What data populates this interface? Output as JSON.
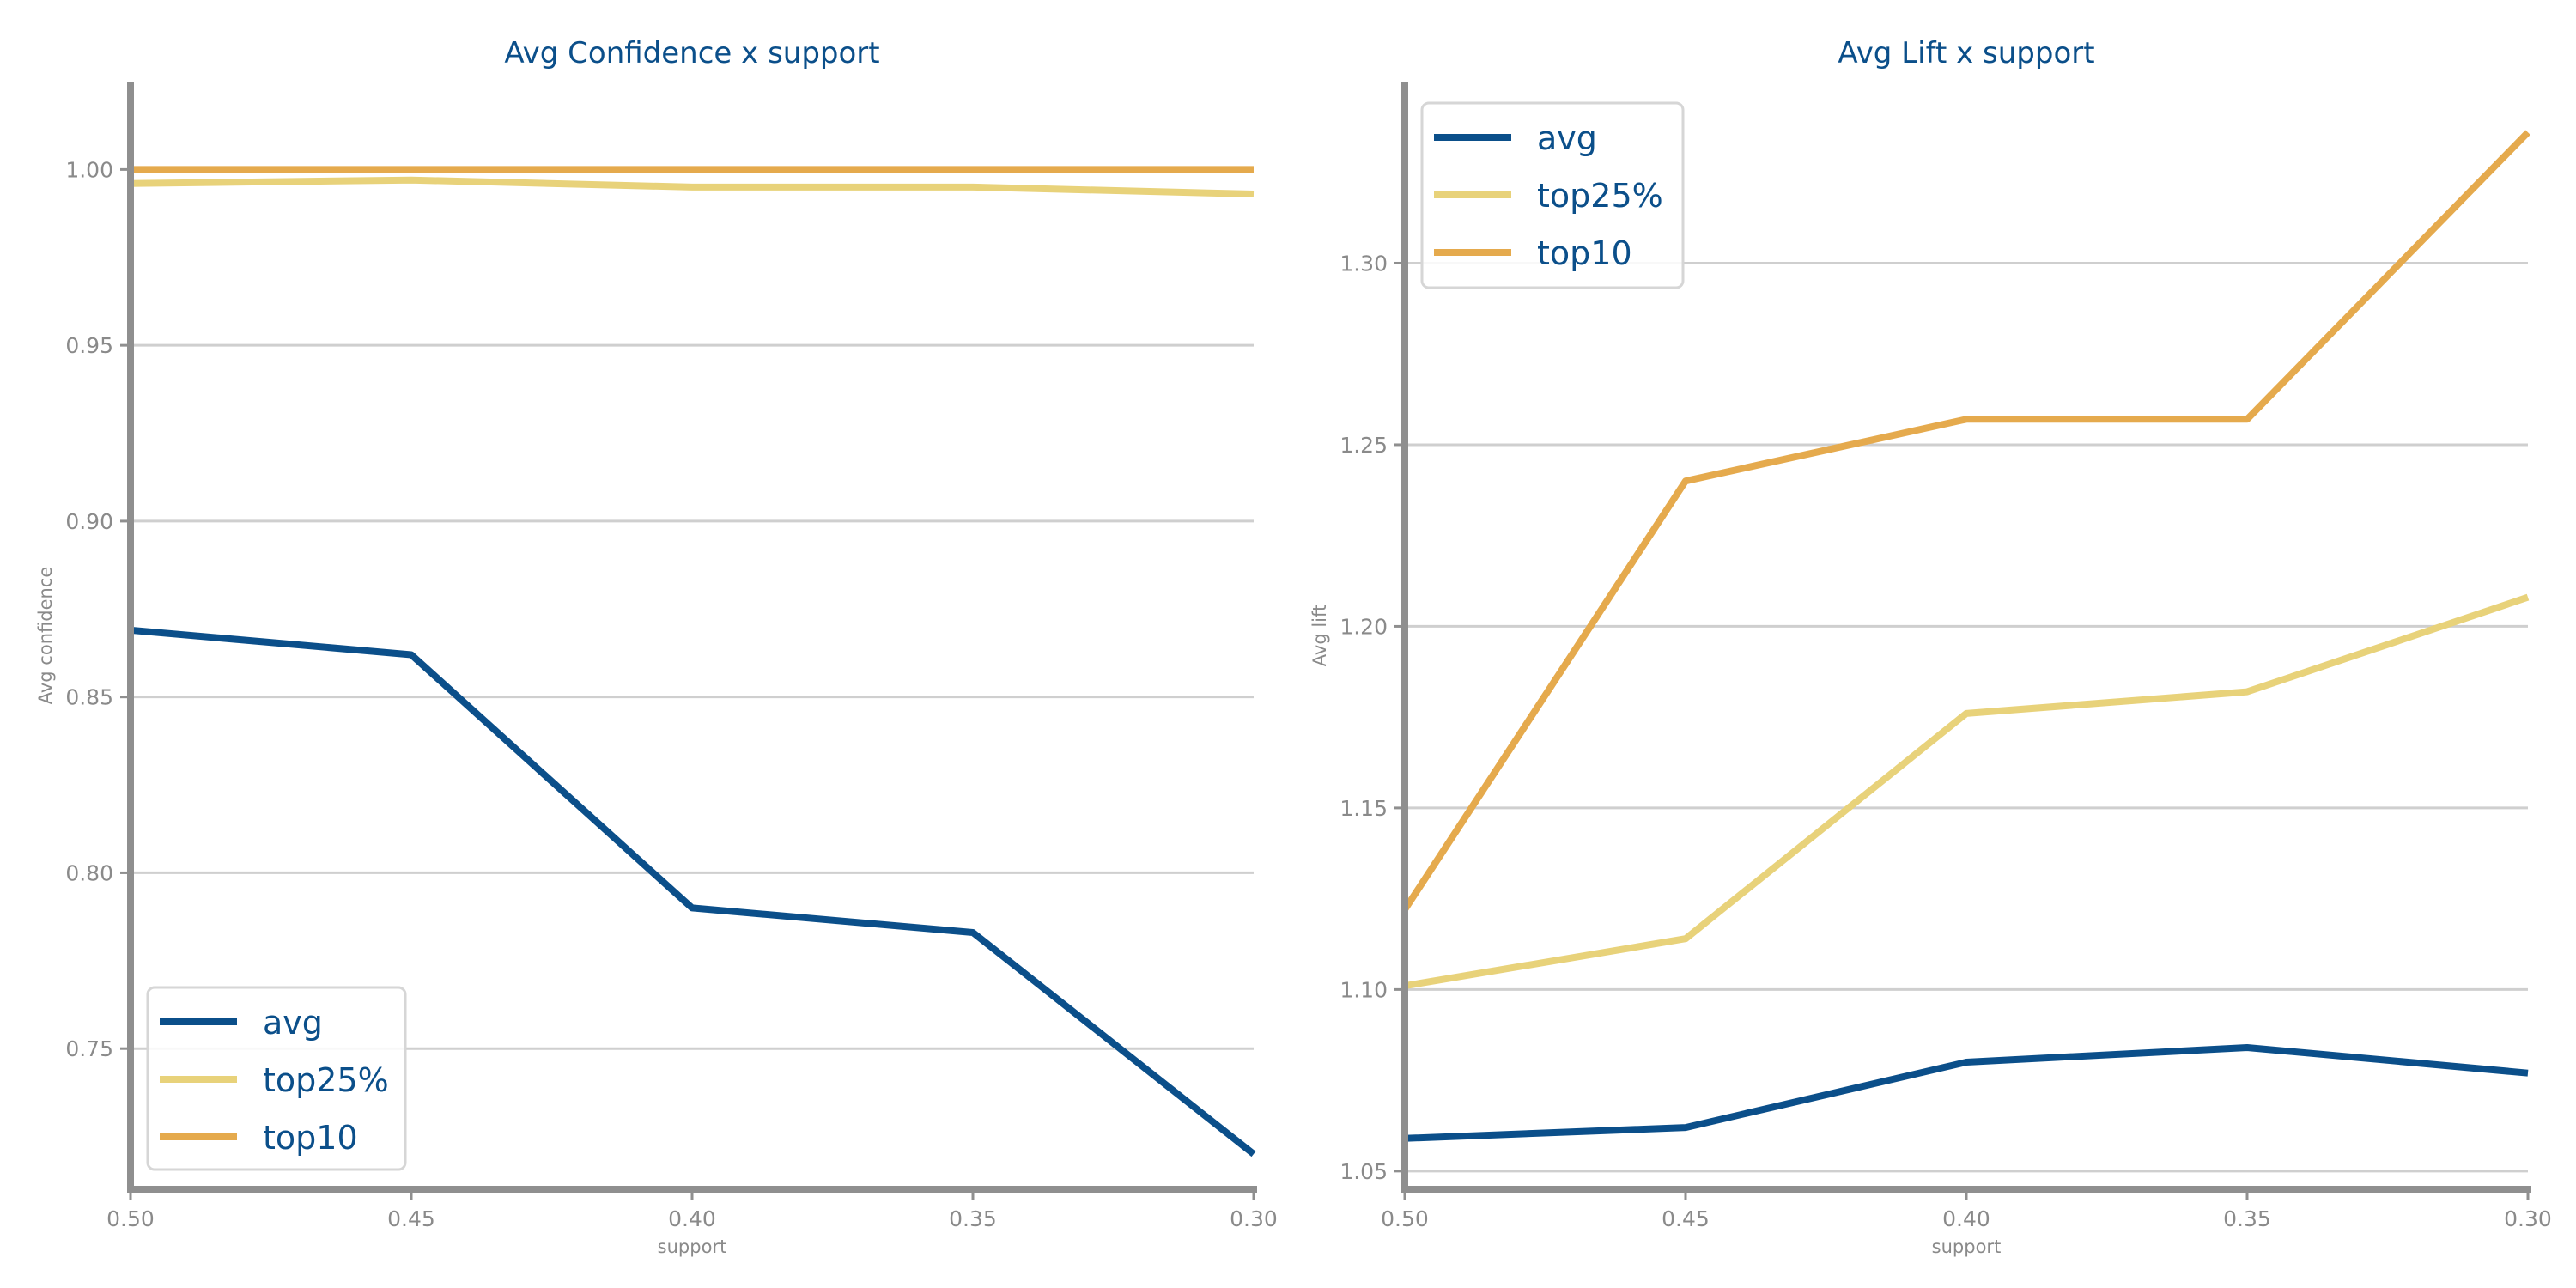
{
  "chart_data": [
    {
      "type": "line",
      "title": "Avg Confidence x support",
      "xlabel": "support",
      "ylabel": "Avg confidence",
      "x": [
        0.5,
        0.45,
        0.4,
        0.35,
        0.3
      ],
      "x_tick_labels": [
        "0.50",
        "0.45",
        "0.40",
        "0.35",
        "0.30"
      ],
      "xlim": [
        0.5,
        0.3
      ],
      "y_ticks": [
        0.75,
        0.8,
        0.85,
        0.9,
        0.95,
        1.0
      ],
      "y_tick_labels": [
        "0.75",
        "0.80",
        "0.85",
        "0.90",
        "0.95",
        "1.00"
      ],
      "ylim": [
        0.71,
        1.025
      ],
      "grid": "horizontal",
      "legend_position": "bottom-left",
      "series": [
        {
          "name": "avg",
          "color": "#0b4f8a",
          "values": [
            0.869,
            0.862,
            0.79,
            0.783,
            0.72
          ]
        },
        {
          "name": "top25%",
          "color": "#e8d27a",
          "values": [
            0.996,
            0.997,
            0.995,
            0.995,
            0.993
          ]
        },
        {
          "name": "top10",
          "color": "#e5aa4d",
          "values": [
            1.0,
            1.0,
            1.0,
            1.0,
            1.0
          ]
        }
      ]
    },
    {
      "type": "line",
      "title": "Avg Lift x support",
      "xlabel": "support",
      "ylabel": "Avg lift",
      "x": [
        0.5,
        0.45,
        0.4,
        0.35,
        0.3
      ],
      "x_tick_labels": [
        "0.50",
        "0.45",
        "0.40",
        "0.35",
        "0.30"
      ],
      "xlim": [
        0.5,
        0.3
      ],
      "y_ticks": [
        1.05,
        1.1,
        1.15,
        1.2,
        1.25,
        1.3
      ],
      "y_tick_labels": [
        "1.05",
        "1.10",
        "1.15",
        "1.20",
        "1.25",
        "1.30"
      ],
      "ylim": [
        1.045,
        1.35
      ],
      "grid": "horizontal",
      "legend_position": "top-left",
      "series": [
        {
          "name": "avg",
          "color": "#0b4f8a",
          "values": [
            1.059,
            1.062,
            1.08,
            1.084,
            1.077
          ]
        },
        {
          "name": "top25%",
          "color": "#e8d27a",
          "values": [
            1.101,
            1.114,
            1.176,
            1.182,
            1.208
          ]
        },
        {
          "name": "top10",
          "color": "#e5aa4d",
          "values": [
            1.122,
            1.24,
            1.257,
            1.257,
            1.336
          ]
        }
      ]
    }
  ]
}
